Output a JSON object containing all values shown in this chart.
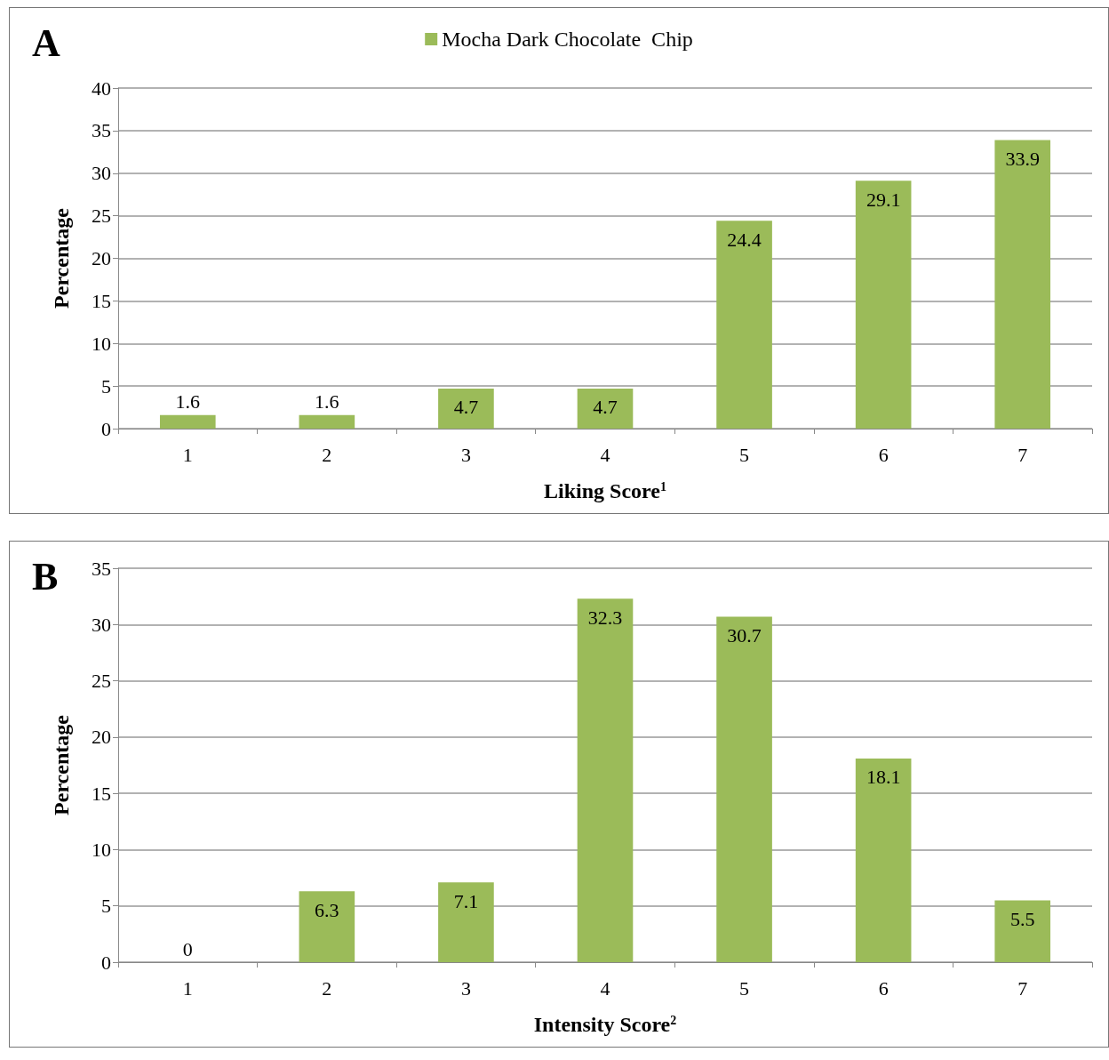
{
  "chart_data": [
    {
      "type": "bar",
      "title": "A",
      "xlabel": "Liking Score$^{1}$",
      "ylabel": "Percentage",
      "categories": [
        "1",
        "2",
        "3",
        "4",
        "5",
        "6",
        "7"
      ],
      "series": [
        {
          "name": "Mocha Dark Chocolate  Chip",
          "color": "#9bbb59",
          "values": [
            1.6,
            1.6,
            4.7,
            4.7,
            24.4,
            29.1,
            33.9
          ]
        }
      ],
      "ylim": [
        0,
        40
      ],
      "yticks": [
        0,
        5,
        10,
        15,
        20,
        25,
        30,
        35,
        40
      ],
      "grid": "y",
      "legend": "top",
      "data_labels": true
    },
    {
      "type": "bar",
      "title": "B",
      "xlabel": "Intensity Score$^{2}$",
      "ylabel": "Percentage",
      "categories": [
        "1",
        "2",
        "3",
        "4",
        "5",
        "6",
        "7"
      ],
      "series": [
        {
          "color": "#9bbb59",
          "values": [
            0,
            6.3,
            7.1,
            32.3,
            30.7,
            18.1,
            5.5
          ]
        }
      ],
      "ylim": [
        0,
        35
      ],
      "yticks": [
        0,
        5,
        10,
        15,
        20,
        25,
        30,
        35
      ],
      "grid": "y",
      "data_labels": true
    }
  ]
}
